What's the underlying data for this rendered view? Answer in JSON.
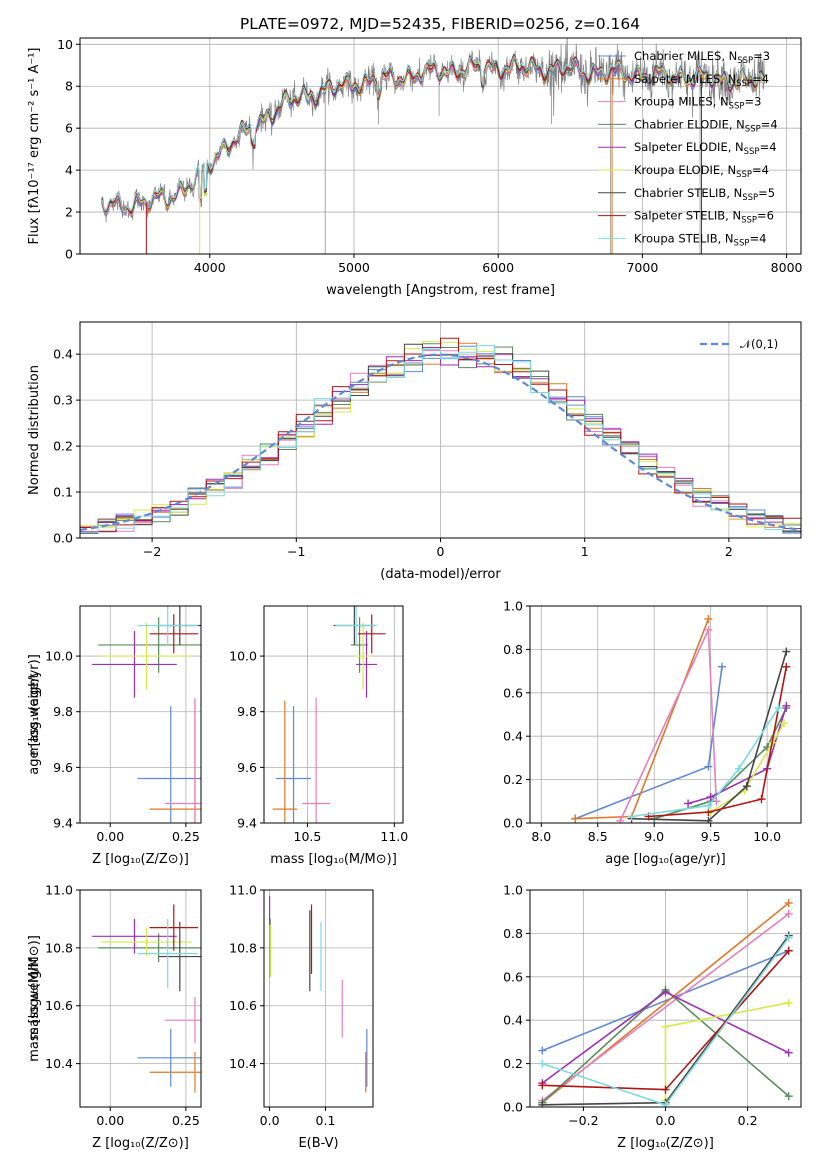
{
  "title": "PLATE=0972, MJD=52435, FIBERID=0256, z=0.164",
  "colors": {
    "chabrier_miles": "#5f89d6",
    "salpeter_miles": "#e0782a",
    "kroupa_miles": "#e57fbd",
    "chabrier_elodie": "#5a8a5e",
    "salpeter_elodie": "#9c2fb4",
    "kroupa_elodie": "#d4ea4a",
    "chabrier_stelib": "#454545",
    "salpeter_stelib": "#b01616",
    "kroupa_stelib": "#7dd9e0",
    "data": "#808080",
    "grid": "#b0b0b0"
  },
  "chart_data": [
    {
      "id": "spectrum",
      "type": "line",
      "xlabel": "wavelength [Angstrom, rest frame]",
      "ylabel": "Flux [fλ10⁻¹⁷ erg cm⁻² s⁻¹ A⁻¹]",
      "xlim": [
        3100,
        8100
      ],
      "ylim": [
        0,
        10.3
      ],
      "xticks": [
        4000,
        5000,
        6000,
        7000,
        8000
      ],
      "yticks": [
        0,
        2,
        4,
        6,
        8,
        10
      ],
      "legend_position": "right",
      "legend": [
        {
          "color_key": "chabrier_miles",
          "label": "Chabrier MILES, N",
          "sub": "SSP",
          "n": "=3"
        },
        {
          "color_key": "salpeter_miles",
          "label": "Salpeter MILES, N",
          "sub": "SSP",
          "n": "=4"
        },
        {
          "color_key": "kroupa_miles",
          "label": "Kroupa MILES, N",
          "sub": "SSP",
          "n": "=3"
        },
        {
          "color_key": "chabrier_elodie",
          "label": "Chabrier ELODIE, N",
          "sub": "SSP",
          "n": "=4"
        },
        {
          "color_key": "salpeter_elodie",
          "label": "Salpeter ELODIE, N",
          "sub": "SSP",
          "n": "=4"
        },
        {
          "color_key": "kroupa_elodie",
          "label": "Kroupa ELODIE, N",
          "sub": "SSP",
          "n": "=4"
        },
        {
          "color_key": "chabrier_stelib",
          "label": "Chabrier STELIB, N",
          "sub": "SSP",
          "n": "=5"
        },
        {
          "color_key": "salpeter_stelib",
          "label": "Salpeter STELIB, N",
          "sub": "SSP",
          "n": "=6"
        },
        {
          "color_key": "kroupa_stelib",
          "label": "Kroupa STELIB, N",
          "sub": "SSP",
          "n": "=4"
        }
      ],
      "continuum": {
        "x": [
          3250,
          3400,
          3500,
          3600,
          3700,
          3800,
          3900,
          4000,
          4100,
          4200,
          4300,
          4400,
          4500,
          4600,
          4800,
          5000,
          5200,
          5400,
          5600,
          5800,
          6000,
          6200,
          6400,
          6600,
          6800,
          7000,
          7200,
          7400,
          7600,
          7850
        ],
        "y": [
          2.3,
          2.35,
          2.4,
          2.5,
          2.7,
          3.0,
          3.5,
          4.3,
          5.1,
          5.6,
          6.0,
          6.6,
          7.1,
          7.4,
          7.8,
          8.1,
          8.3,
          8.5,
          8.7,
          8.8,
          8.9,
          8.85,
          8.8,
          8.7,
          8.6,
          8.55,
          8.5,
          8.4,
          8.3,
          8.2
        ]
      }
    },
    {
      "id": "residuals",
      "type": "histogram",
      "xlabel": "(data-model)/error",
      "ylabel": "Normed distribution",
      "xlim": [
        -2.5,
        2.5
      ],
      "ylim": [
        0,
        0.47
      ],
      "xticks": [
        -2,
        -1,
        0,
        1,
        2
      ],
      "yticks": [
        0.0,
        0.1,
        0.2,
        0.3,
        0.4
      ],
      "legend_label": "𝒩(0,1)",
      "legend_position": "upper right",
      "normal_curve": {
        "mean": 0,
        "sigma": 1,
        "style": "dashed",
        "color_key": "chabrier_miles"
      }
    },
    {
      "id": "age_vs_Z",
      "type": "errorbar",
      "xlabel": "Z [log₁₀(Z/Z⊙)]",
      "ylabel": "age  [log₁₀(age/yr)]",
      "xlim": [
        -0.1,
        0.3
      ],
      "ylim": [
        9.4,
        10.18
      ],
      "xticks": [
        0.0,
        0.25
      ],
      "yticks": [
        9.4,
        9.6,
        9.8,
        10.0
      ],
      "points": [
        {
          "c": "chabrier_miles",
          "x": 0.2,
          "y": 9.56,
          "dx": 0.11,
          "dy": 0.26
        },
        {
          "c": "salpeter_miles",
          "x": 0.28,
          "y": 9.45,
          "dx": 0.15,
          "dy": 0.39
        },
        {
          "c": "kroupa_miles",
          "x": 0.28,
          "y": 9.47,
          "dx": 0.1,
          "dy": 0.38
        },
        {
          "c": "chabrier_elodie",
          "x": 0.16,
          "y": 10.04,
          "dx": 0.2,
          "dy": 0.1
        },
        {
          "c": "salpeter_elodie",
          "x": 0.08,
          "y": 9.97,
          "dx": 0.14,
          "dy": 0.12
        },
        {
          "c": "kroupa_elodie",
          "x": 0.12,
          "y": 10.0,
          "dx": 0.15,
          "dy": 0.12
        },
        {
          "c": "chabrier_stelib",
          "x": 0.23,
          "y": 10.11,
          "dx": 0.07,
          "dy": 0.07
        },
        {
          "c": "salpeter_stelib",
          "x": 0.21,
          "y": 10.08,
          "dx": 0.08,
          "dy": 0.07
        },
        {
          "c": "kroupa_stelib",
          "x": 0.19,
          "y": 10.11,
          "dx": 0.1,
          "dy": 0.07
        }
      ]
    },
    {
      "id": "age_vs_mass",
      "type": "errorbar",
      "xlabel": "mass [log₁₀(M/M⊙)]",
      "ylabel": "",
      "xlim": [
        10.25,
        11.05
      ],
      "ylim": [
        9.4,
        10.18
      ],
      "xticks": [
        10.5,
        11.0
      ],
      "yticks": [
        9.4,
        9.6,
        9.8,
        10.0
      ],
      "points": [
        {
          "c": "chabrier_miles",
          "x": 10.42,
          "y": 9.56,
          "dx": 0.1,
          "dy": 0.26
        },
        {
          "c": "salpeter_miles",
          "x": 10.37,
          "y": 9.45,
          "dx": 0.07,
          "dy": 0.39
        },
        {
          "c": "kroupa_miles",
          "x": 10.55,
          "y": 9.47,
          "dx": 0.08,
          "dy": 0.38
        },
        {
          "c": "chabrier_elodie",
          "x": 10.8,
          "y": 10.04,
          "dx": 0.05,
          "dy": 0.1
        },
        {
          "c": "salpeter_elodie",
          "x": 10.84,
          "y": 9.97,
          "dx": 0.06,
          "dy": 0.12
        },
        {
          "c": "kroupa_elodie",
          "x": 10.82,
          "y": 10.0,
          "dx": 0.05,
          "dy": 0.12
        },
        {
          "c": "chabrier_stelib",
          "x": 10.77,
          "y": 10.11,
          "dx": 0.12,
          "dy": 0.07
        },
        {
          "c": "salpeter_stelib",
          "x": 10.87,
          "y": 10.08,
          "dx": 0.08,
          "dy": 0.07
        },
        {
          "c": "kroupa_stelib",
          "x": 10.78,
          "y": 10.11,
          "dx": 0.12,
          "dy": 0.07
        }
      ]
    },
    {
      "id": "weight_vs_age",
      "type": "line",
      "xlabel": "age  [log₁₀(age/yr)]",
      "ylabel": "mass weight",
      "xlim": [
        7.9,
        10.3
      ],
      "ylim": [
        0,
        1.0
      ],
      "xticks": [
        8.0,
        8.5,
        9.0,
        9.5,
        10.0
      ],
      "yticks": [
        0.0,
        0.2,
        0.4,
        0.6,
        0.8,
        1.0
      ],
      "series": [
        {
          "c": "chabrier_miles",
          "x": [
            8.3,
            9.48,
            9.6
          ],
          "y": [
            0.02,
            0.26,
            0.72
          ]
        },
        {
          "c": "salpeter_miles",
          "x": [
            8.3,
            8.8,
            9.48
          ],
          "y": [
            0.02,
            0.03,
            0.94
          ]
        },
        {
          "c": "kroupa_miles",
          "x": [
            8.7,
            9.48,
            9.55
          ],
          "y": [
            0.01,
            0.89,
            0.1
          ]
        },
        {
          "c": "chabrier_elodie",
          "x": [
            9.0,
            9.5,
            10.0,
            10.17
          ],
          "y": [
            0.02,
            0.1,
            0.35,
            0.53
          ]
        },
        {
          "c": "salpeter_elodie",
          "x": [
            9.3,
            9.5,
            10.0,
            10.17
          ],
          "y": [
            0.09,
            0.12,
            0.25,
            0.54
          ]
        },
        {
          "c": "kroupa_elodie",
          "x": [
            9.5,
            9.8,
            10.05,
            10.15
          ],
          "y": [
            0.05,
            0.15,
            0.37,
            0.46
          ]
        },
        {
          "c": "chabrier_stelib",
          "x": [
            8.8,
            9.48,
            9.82,
            10.17
          ],
          "y": [
            0.02,
            0.01,
            0.17,
            0.79
          ]
        },
        {
          "c": "salpeter_stelib",
          "x": [
            8.95,
            9.48,
            9.95,
            10.17
          ],
          "y": [
            0.03,
            0.05,
            0.11,
            0.72
          ]
        },
        {
          "c": "kroupa_stelib",
          "x": [
            8.8,
            9.48,
            9.75,
            10.1
          ],
          "y": [
            0.03,
            0.08,
            0.25,
            0.53
          ]
        }
      ]
    },
    {
      "id": "mass_vs_Z",
      "type": "errorbar",
      "xlabel": "Z [log₁₀(Z/Z⊙)]",
      "ylabel": "mass [log₁₀(M/M⊙)]",
      "xlim": [
        -0.1,
        0.3
      ],
      "ylim": [
        10.25,
        11.0
      ],
      "xticks": [
        0.0,
        0.25
      ],
      "yticks": [
        10.4,
        10.6,
        10.8,
        11.0
      ],
      "points": [
        {
          "c": "chabrier_miles",
          "x": 0.2,
          "y": 10.42,
          "dx": 0.11,
          "dy": 0.1
        },
        {
          "c": "salpeter_miles",
          "x": 0.28,
          "y": 10.37,
          "dx": 0.15,
          "dy": 0.07
        },
        {
          "c": "kroupa_miles",
          "x": 0.28,
          "y": 10.55,
          "dx": 0.1,
          "dy": 0.08
        },
        {
          "c": "chabrier_elodie",
          "x": 0.16,
          "y": 10.8,
          "dx": 0.2,
          "dy": 0.05
        },
        {
          "c": "salpeter_elodie",
          "x": 0.08,
          "y": 10.84,
          "dx": 0.14,
          "dy": 0.06
        },
        {
          "c": "kroupa_elodie",
          "x": 0.12,
          "y": 10.82,
          "dx": 0.15,
          "dy": 0.05
        },
        {
          "c": "chabrier_stelib",
          "x": 0.23,
          "y": 10.77,
          "dx": 0.07,
          "dy": 0.12
        },
        {
          "c": "salpeter_stelib",
          "x": 0.21,
          "y": 10.87,
          "dx": 0.08,
          "dy": 0.08
        },
        {
          "c": "kroupa_stelib",
          "x": 0.19,
          "y": 10.78,
          "dx": 0.1,
          "dy": 0.12
        }
      ]
    },
    {
      "id": "mass_vs_ebv",
      "type": "errorbar",
      "xlabel": "E(B-V)",
      "ylabel": "",
      "xlim": [
        -0.01,
        0.185
      ],
      "ylim": [
        10.25,
        11.0
      ],
      "xticks": [
        0.0,
        0.1
      ],
      "yticks": [
        10.4,
        10.6,
        10.8,
        11.0
      ],
      "points": [
        {
          "c": "chabrier_miles",
          "x": 0.174,
          "y": 10.42,
          "dx": 0,
          "dy": 0.1
        },
        {
          "c": "salpeter_miles",
          "x": 0.172,
          "y": 10.37,
          "dx": 0,
          "dy": 0.07
        },
        {
          "c": "kroupa_miles",
          "x": 0.13,
          "y": 10.59,
          "dx": 0,
          "dy": 0.1
        },
        {
          "c": "chabrier_elodie",
          "x": 0.001,
          "y": 10.8,
          "dx": 0,
          "dy": 0.1
        },
        {
          "c": "salpeter_elodie",
          "x": 0.0,
          "y": 10.93,
          "dx": 0,
          "dy": 0.05
        },
        {
          "c": "kroupa_elodie",
          "x": 0.002,
          "y": 10.79,
          "dx": 0,
          "dy": 0.09
        },
        {
          "c": "chabrier_stelib",
          "x": 0.072,
          "y": 10.79,
          "dx": 0,
          "dy": 0.14
        },
        {
          "c": "salpeter_stelib",
          "x": 0.075,
          "y": 10.83,
          "dx": 0,
          "dy": 0.12
        },
        {
          "c": "kroupa_stelib",
          "x": 0.092,
          "y": 10.77,
          "dx": 0,
          "dy": 0.12
        }
      ]
    },
    {
      "id": "weight_vs_Z",
      "type": "line",
      "xlabel": "Z [log₁₀(Z/Z⊙)]",
      "ylabel": "mass weight",
      "xlim": [
        -0.33,
        0.33
      ],
      "ylim": [
        0,
        1.0
      ],
      "xticks": [
        -0.2,
        0.0,
        0.2
      ],
      "yticks": [
        0.0,
        0.2,
        0.4,
        0.6,
        0.8,
        1.0
      ],
      "series": [
        {
          "c": "chabrier_miles",
          "x": [
            -0.3,
            0.3
          ],
          "y": [
            0.26,
            0.72
          ]
        },
        {
          "c": "salpeter_miles",
          "x": [
            -0.3,
            0.3
          ],
          "y": [
            0.02,
            0.94
          ]
        },
        {
          "c": "kroupa_miles",
          "x": [
            -0.3,
            0.3
          ],
          "y": [
            0.03,
            0.89
          ]
        },
        {
          "c": "chabrier_elodie",
          "x": [
            -0.3,
            0.0,
            0.3
          ],
          "y": [
            0.02,
            0.54,
            0.05
          ]
        },
        {
          "c": "salpeter_elodie",
          "x": [
            -0.3,
            0.0,
            0.3
          ],
          "y": [
            0.11,
            0.53,
            0.25
          ]
        },
        {
          "c": "kroupa_elodie",
          "x": [
            0.0,
            0.0,
            0.3
          ],
          "y": [
            0.03,
            0.37,
            0.48
          ]
        },
        {
          "c": "chabrier_stelib",
          "x": [
            -0.3,
            0.0,
            0.3
          ],
          "y": [
            0.01,
            0.02,
            0.79
          ]
        },
        {
          "c": "salpeter_stelib",
          "x": [
            -0.3,
            0.0,
            0.3
          ],
          "y": [
            0.1,
            0.08,
            0.72
          ]
        },
        {
          "c": "kroupa_stelib",
          "x": [
            -0.3,
            0.0,
            0.3
          ],
          "y": [
            0.2,
            0.01,
            0.78
          ]
        }
      ]
    }
  ]
}
